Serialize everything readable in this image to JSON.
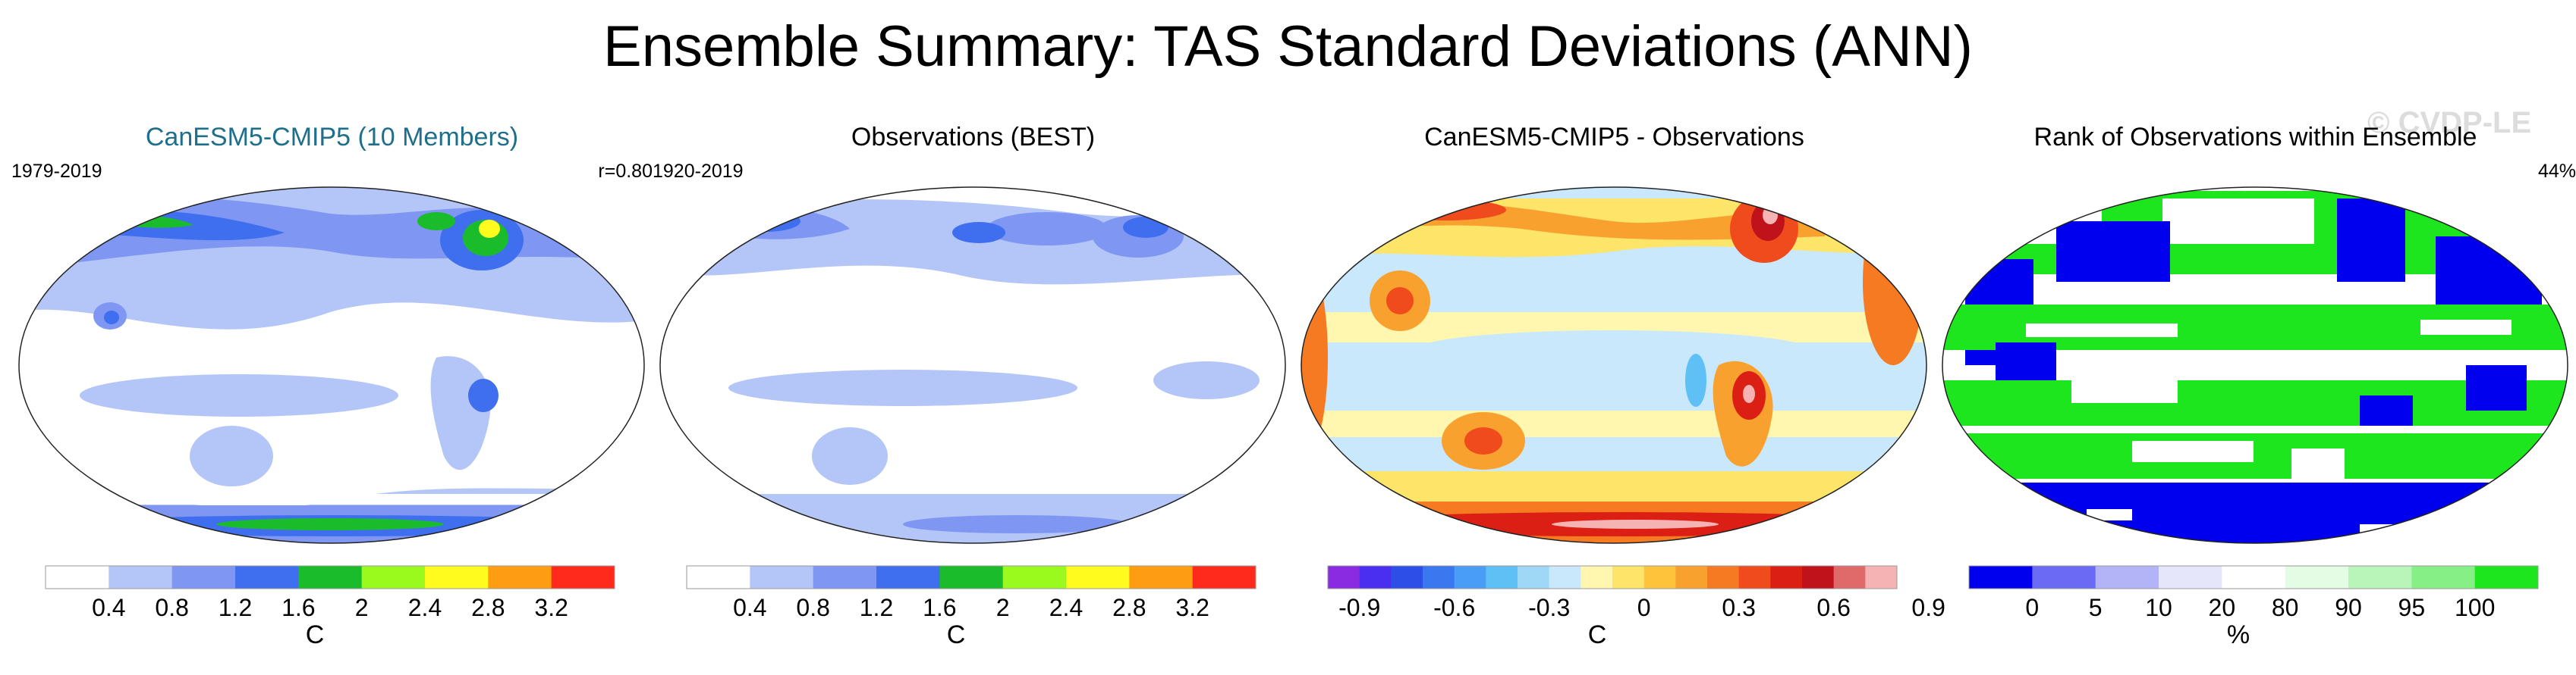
{
  "figure": {
    "title": "Ensemble Summary: TAS Standard Deviations (ANN)",
    "watermark": "© CVDP-LE"
  },
  "chart_data": [
    {
      "type": "heatmap",
      "title": "CanESM5-CMIP5 (10 Members)",
      "title_color": "#1f6f8b",
      "period": "1979-2019",
      "annotation": "r=0.80",
      "colorbar": {
        "unit": "C",
        "colors": [
          "#ffffff",
          "#b4c6f7",
          "#7f97f2",
          "#3f6fef",
          "#1bbc2c",
          "#9af91d",
          "#fffb1e",
          "#ff9d12",
          "#ff2a1c"
        ],
        "ticks": [
          "0.4",
          "0.8",
          "1.2",
          "1.6",
          "2",
          "2.4",
          "2.8",
          "3.2"
        ]
      }
    },
    {
      "type": "heatmap",
      "title": "Observations (BEST)",
      "title_color": "#000000",
      "period": "1920-2019",
      "annotation": "",
      "colorbar": {
        "unit": "C",
        "colors": [
          "#ffffff",
          "#b4c6f7",
          "#7f97f2",
          "#3f6fef",
          "#1bbc2c",
          "#9af91d",
          "#fffb1e",
          "#ff9d12",
          "#ff2a1c"
        ],
        "ticks": [
          "0.4",
          "0.8",
          "1.2",
          "1.6",
          "2",
          "2.4",
          "2.8",
          "3.2"
        ]
      }
    },
    {
      "type": "heatmap",
      "title": "CanESM5-CMIP5 - Observations",
      "title_color": "#000000",
      "period": "",
      "annotation": "",
      "colorbar": {
        "unit": "C",
        "colors": [
          "#8a2be2",
          "#4b2ff0",
          "#2d4fe8",
          "#3a78f0",
          "#4a9df5",
          "#5fc0f5",
          "#9fd8f7",
          "#c9e8fb",
          "#fff7b0",
          "#fde56a",
          "#fcc33b",
          "#f9a12e",
          "#f57a22",
          "#ef4b1c",
          "#dc1f15",
          "#c0121b",
          "#e06a6a",
          "#f6b3b3"
        ],
        "ticks": [
          "-0.9",
          "-0.6",
          "-0.3",
          "0",
          "0.3",
          "0.6",
          "0.9"
        ]
      }
    },
    {
      "type": "heatmap",
      "title": "Rank of Observations within Ensemble",
      "title_color": "#000000",
      "period": "",
      "annotation": "44%",
      "colorbar": {
        "unit": "%",
        "colors": [
          "#0000ee",
          "#6a6af5",
          "#b3b3f8",
          "#e6e6fb",
          "#ffffff",
          "#e4fbe4",
          "#b9f5b9",
          "#86ef86",
          "#1ee61e"
        ],
        "ticks": [
          "0",
          "5",
          "10",
          "20",
          "80",
          "90",
          "95",
          "100"
        ]
      }
    }
  ]
}
